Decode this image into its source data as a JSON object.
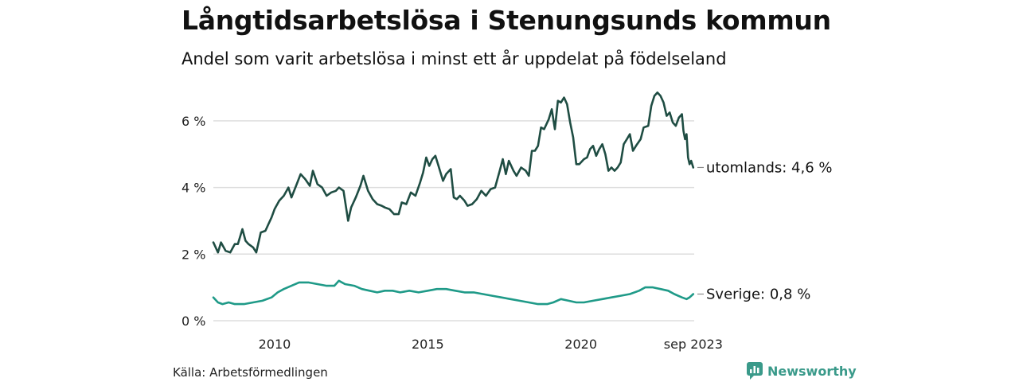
{
  "header": {
    "title": "Långtidsarbetslösa i Stenungsunds kommun",
    "subtitle": "Andel som varit arbetslösa i minst ett år uppdelat på födelseland"
  },
  "footer": {
    "source": "Källa: Arbetsförmedlingen",
    "brand": "Newsworthy"
  },
  "colors": {
    "utomlands": "#1f4d43",
    "sverige": "#1f9a88",
    "grid": "#dddddd",
    "brand": "#3a9a8a"
  },
  "chart_data": {
    "type": "line",
    "title": "Långtidsarbetslösa i Stenungsunds kommun",
    "subtitle": "Andel som varit arbetslösa i minst ett år uppdelat på födelseland",
    "x_start": [
      2008,
      1
    ],
    "x_end": [
      2023,
      9
    ],
    "xlim": [
      2008.0,
      2023.7
    ],
    "ylim": [
      0,
      7
    ],
    "y_ticks": [
      {
        "value": 0,
        "label": "0 %"
      },
      {
        "value": 2,
        "label": "2 %"
      },
      {
        "value": 4,
        "label": "4 %"
      },
      {
        "value": 6,
        "label": "6 %"
      }
    ],
    "x_ticks": [
      {
        "value": 2010,
        "label": "2010"
      },
      {
        "value": 2015,
        "label": "2015"
      },
      {
        "value": 2020,
        "label": "2020"
      },
      {
        "value": 2023.67,
        "label": "sep 2023"
      }
    ],
    "grid": true,
    "series": [
      {
        "name": "utomlands",
        "end_label": "utomlands: 4,6 %",
        "color": "#1f4d43",
        "anchors": [
          [
            2008.0,
            2.35
          ],
          [
            2008.15,
            2.05
          ],
          [
            2008.25,
            2.35
          ],
          [
            2008.4,
            2.1
          ],
          [
            2008.55,
            2.05
          ],
          [
            2008.7,
            2.3
          ],
          [
            2008.8,
            2.3
          ],
          [
            2008.95,
            2.75
          ],
          [
            2009.05,
            2.4
          ],
          [
            2009.15,
            2.3
          ],
          [
            2009.3,
            2.2
          ],
          [
            2009.4,
            2.05
          ],
          [
            2009.55,
            2.65
          ],
          [
            2009.7,
            2.7
          ],
          [
            2009.8,
            2.9
          ],
          [
            2009.9,
            3.1
          ],
          [
            2010.0,
            3.35
          ],
          [
            2010.15,
            3.6
          ],
          [
            2010.3,
            3.75
          ],
          [
            2010.45,
            4.0
          ],
          [
            2010.55,
            3.7
          ],
          [
            2010.7,
            4.05
          ],
          [
            2010.85,
            4.4
          ],
          [
            2011.0,
            4.25
          ],
          [
            2011.15,
            4.05
          ],
          [
            2011.25,
            4.5
          ],
          [
            2011.4,
            4.1
          ],
          [
            2011.55,
            4.0
          ],
          [
            2011.7,
            3.75
          ],
          [
            2011.85,
            3.85
          ],
          [
            2012.0,
            3.9
          ],
          [
            2012.1,
            4.0
          ],
          [
            2012.25,
            3.9
          ],
          [
            2012.4,
            3.0
          ],
          [
            2012.5,
            3.4
          ],
          [
            2012.65,
            3.7
          ],
          [
            2012.8,
            4.05
          ],
          [
            2012.9,
            4.35
          ],
          [
            2013.05,
            3.9
          ],
          [
            2013.2,
            3.65
          ],
          [
            2013.35,
            3.5
          ],
          [
            2013.5,
            3.45
          ],
          [
            2013.6,
            3.4
          ],
          [
            2013.75,
            3.35
          ],
          [
            2013.9,
            3.2
          ],
          [
            2014.05,
            3.2
          ],
          [
            2014.15,
            3.55
          ],
          [
            2014.3,
            3.5
          ],
          [
            2014.45,
            3.85
          ],
          [
            2014.6,
            3.75
          ],
          [
            2014.75,
            4.15
          ],
          [
            2014.85,
            4.45
          ],
          [
            2014.95,
            4.9
          ],
          [
            2015.05,
            4.65
          ],
          [
            2015.15,
            4.85
          ],
          [
            2015.25,
            4.95
          ],
          [
            2015.35,
            4.65
          ],
          [
            2015.5,
            4.2
          ],
          [
            2015.6,
            4.4
          ],
          [
            2015.75,
            4.55
          ],
          [
            2015.85,
            3.7
          ],
          [
            2015.95,
            3.65
          ],
          [
            2016.05,
            3.75
          ],
          [
            2016.2,
            3.6
          ],
          [
            2016.3,
            3.45
          ],
          [
            2016.45,
            3.5
          ],
          [
            2016.6,
            3.65
          ],
          [
            2016.75,
            3.9
          ],
          [
            2016.9,
            3.75
          ],
          [
            2017.05,
            3.95
          ],
          [
            2017.2,
            4.0
          ],
          [
            2017.35,
            4.5
          ],
          [
            2017.45,
            4.85
          ],
          [
            2017.55,
            4.4
          ],
          [
            2017.65,
            4.8
          ],
          [
            2017.8,
            4.5
          ],
          [
            2017.9,
            4.35
          ],
          [
            2018.05,
            4.6
          ],
          [
            2018.2,
            4.5
          ],
          [
            2018.3,
            4.35
          ],
          [
            2018.4,
            5.1
          ],
          [
            2018.5,
            5.1
          ],
          [
            2018.6,
            5.25
          ],
          [
            2018.7,
            5.8
          ],
          [
            2018.8,
            5.75
          ],
          [
            2018.95,
            6.05
          ],
          [
            2019.05,
            6.35
          ],
          [
            2019.15,
            5.75
          ],
          [
            2019.25,
            6.6
          ],
          [
            2019.35,
            6.55
          ],
          [
            2019.45,
            6.7
          ],
          [
            2019.55,
            6.5
          ],
          [
            2019.65,
            5.95
          ],
          [
            2019.75,
            5.5
          ],
          [
            2019.85,
            4.7
          ],
          [
            2019.95,
            4.7
          ],
          [
            2020.1,
            4.85
          ],
          [
            2020.2,
            4.9
          ],
          [
            2020.3,
            5.15
          ],
          [
            2020.4,
            5.25
          ],
          [
            2020.5,
            4.95
          ],
          [
            2020.6,
            5.15
          ],
          [
            2020.7,
            5.3
          ],
          [
            2020.8,
            5.0
          ],
          [
            2020.9,
            4.5
          ],
          [
            2021.0,
            4.6
          ],
          [
            2021.1,
            4.5
          ],
          [
            2021.2,
            4.6
          ],
          [
            2021.3,
            4.75
          ],
          [
            2021.4,
            5.3
          ],
          [
            2021.5,
            5.45
          ],
          [
            2021.6,
            5.6
          ],
          [
            2021.7,
            5.1
          ],
          [
            2021.8,
            5.25
          ],
          [
            2021.95,
            5.45
          ],
          [
            2022.05,
            5.8
          ],
          [
            2022.2,
            5.85
          ],
          [
            2022.3,
            6.45
          ],
          [
            2022.4,
            6.75
          ],
          [
            2022.5,
            6.85
          ],
          [
            2022.6,
            6.75
          ],
          [
            2022.7,
            6.55
          ],
          [
            2022.8,
            6.15
          ],
          [
            2022.9,
            6.25
          ],
          [
            2023.0,
            5.95
          ],
          [
            2023.1,
            5.85
          ],
          [
            2023.2,
            6.1
          ],
          [
            2023.3,
            6.2
          ],
          [
            2023.35,
            5.7
          ],
          [
            2023.4,
            5.45
          ],
          [
            2023.45,
            5.6
          ],
          [
            2023.5,
            4.9
          ],
          [
            2023.55,
            4.7
          ],
          [
            2023.6,
            4.8
          ],
          [
            2023.67,
            4.6
          ]
        ]
      },
      {
        "name": "Sverige",
        "end_label": "Sverige: 0,8 %",
        "color": "#1f9a88",
        "anchors": [
          [
            2008.0,
            0.7
          ],
          [
            2008.15,
            0.55
          ],
          [
            2008.3,
            0.5
          ],
          [
            2008.5,
            0.55
          ],
          [
            2008.7,
            0.5
          ],
          [
            2009.0,
            0.5
          ],
          [
            2009.3,
            0.55
          ],
          [
            2009.6,
            0.6
          ],
          [
            2009.9,
            0.7
          ],
          [
            2010.1,
            0.85
          ],
          [
            2010.3,
            0.95
          ],
          [
            2010.55,
            1.05
          ],
          [
            2010.8,
            1.15
          ],
          [
            2011.1,
            1.15
          ],
          [
            2011.4,
            1.1
          ],
          [
            2011.7,
            1.05
          ],
          [
            2011.95,
            1.05
          ],
          [
            2012.1,
            1.2
          ],
          [
            2012.3,
            1.1
          ],
          [
            2012.6,
            1.05
          ],
          [
            2012.85,
            0.95
          ],
          [
            2013.1,
            0.9
          ],
          [
            2013.35,
            0.85
          ],
          [
            2013.6,
            0.9
          ],
          [
            2013.85,
            0.9
          ],
          [
            2014.1,
            0.85
          ],
          [
            2014.4,
            0.9
          ],
          [
            2014.7,
            0.85
          ],
          [
            2015.0,
            0.9
          ],
          [
            2015.3,
            0.95
          ],
          [
            2015.6,
            0.95
          ],
          [
            2015.9,
            0.9
          ],
          [
            2016.2,
            0.85
          ],
          [
            2016.5,
            0.85
          ],
          [
            2016.8,
            0.8
          ],
          [
            2017.1,
            0.75
          ],
          [
            2017.4,
            0.7
          ],
          [
            2017.7,
            0.65
          ],
          [
            2018.0,
            0.6
          ],
          [
            2018.3,
            0.55
          ],
          [
            2018.6,
            0.5
          ],
          [
            2018.9,
            0.5
          ],
          [
            2019.1,
            0.55
          ],
          [
            2019.35,
            0.65
          ],
          [
            2019.6,
            0.6
          ],
          [
            2019.85,
            0.55
          ],
          [
            2020.1,
            0.55
          ],
          [
            2020.4,
            0.6
          ],
          [
            2020.7,
            0.65
          ],
          [
            2021.0,
            0.7
          ],
          [
            2021.3,
            0.75
          ],
          [
            2021.6,
            0.8
          ],
          [
            2021.9,
            0.9
          ],
          [
            2022.1,
            1.0
          ],
          [
            2022.35,
            1.0
          ],
          [
            2022.6,
            0.95
          ],
          [
            2022.85,
            0.9
          ],
          [
            2023.05,
            0.8
          ],
          [
            2023.3,
            0.7
          ],
          [
            2023.45,
            0.65
          ],
          [
            2023.55,
            0.7
          ],
          [
            2023.67,
            0.8
          ]
        ]
      }
    ]
  }
}
